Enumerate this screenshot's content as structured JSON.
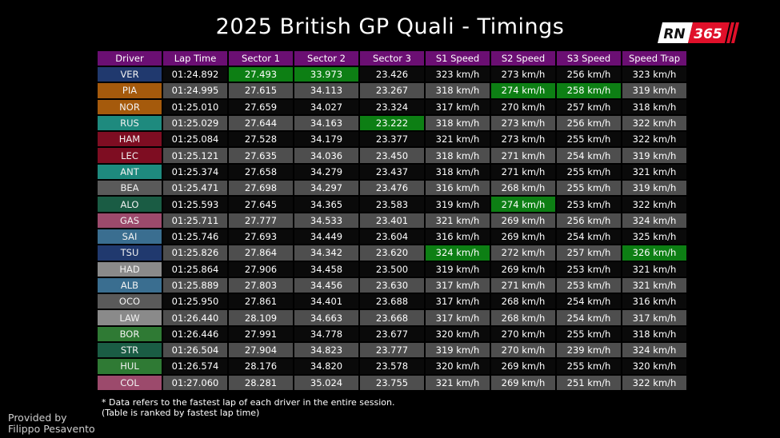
{
  "title": "2025 British GP Quali - Timings",
  "logo": {
    "left": "RN",
    "right": "365",
    "accent": "#e0102a"
  },
  "footnote": {
    "line1": "* Data refers to the fastest lap of each driver in the entire session.",
    "line2": "(Table is ranked by fastest lap time)"
  },
  "credit": {
    "line1": "Provided by",
    "line2": "Filippo Pesavento"
  },
  "colors": {
    "header": "#6b0f73",
    "best": "#0d7f14",
    "row_dark": "#0a0a0a",
    "row_light": "#4e4e4e"
  },
  "chart_data": {
    "type": "table",
    "columns": [
      "Driver",
      "Lap Time",
      "Sector 1",
      "Sector 2",
      "Sector 3",
      "S1 Speed",
      "S2 Speed",
      "S3 Speed",
      "Speed Trap"
    ],
    "rows": [
      {
        "driver": "VER",
        "color": "#20396e",
        "cells": [
          "01:24.892",
          "27.493",
          "33.973",
          "23.426",
          "323 km/h",
          "273 km/h",
          "256 km/h",
          "323 km/h"
        ],
        "best": [
          1,
          2
        ]
      },
      {
        "driver": "PIA",
        "color": "#a55a0c",
        "cells": [
          "01:24.995",
          "27.615",
          "34.113",
          "23.267",
          "318 km/h",
          "274 km/h",
          "258 km/h",
          "319 km/h"
        ],
        "best": [
          5,
          6
        ]
      },
      {
        "driver": "NOR",
        "color": "#a55a0c",
        "cells": [
          "01:25.010",
          "27.659",
          "34.027",
          "23.324",
          "317 km/h",
          "270 km/h",
          "257 km/h",
          "318 km/h"
        ],
        "best": []
      },
      {
        "driver": "RUS",
        "color": "#1e8a7e",
        "cells": [
          "01:25.029",
          "27.644",
          "34.163",
          "23.222",
          "318 km/h",
          "273 km/h",
          "256 km/h",
          "322 km/h"
        ],
        "best": [
          3
        ]
      },
      {
        "driver": "HAM",
        "color": "#7e0d22",
        "cells": [
          "01:25.084",
          "27.528",
          "34.179",
          "23.377",
          "321 km/h",
          "273 km/h",
          "255 km/h",
          "322 km/h"
        ],
        "best": []
      },
      {
        "driver": "LEC",
        "color": "#7e0d22",
        "cells": [
          "01:25.121",
          "27.635",
          "34.036",
          "23.450",
          "318 km/h",
          "271 km/h",
          "254 km/h",
          "319 km/h"
        ],
        "best": []
      },
      {
        "driver": "ANT",
        "color": "#1e8a7e",
        "cells": [
          "01:25.374",
          "27.658",
          "34.279",
          "23.437",
          "318 km/h",
          "271 km/h",
          "255 km/h",
          "321 km/h"
        ],
        "best": []
      },
      {
        "driver": "BEA",
        "color": "#5a5a5a",
        "cells": [
          "01:25.471",
          "27.698",
          "34.297",
          "23.476",
          "316 km/h",
          "268 km/h",
          "255 km/h",
          "319 km/h"
        ],
        "best": []
      },
      {
        "driver": "ALO",
        "color": "#1a5c44",
        "cells": [
          "01:25.593",
          "27.645",
          "34.365",
          "23.583",
          "319 km/h",
          "274 km/h",
          "253 km/h",
          "322 km/h"
        ],
        "best": [
          5
        ]
      },
      {
        "driver": "GAS",
        "color": "#9c4a6c",
        "cells": [
          "01:25.711",
          "27.777",
          "34.533",
          "23.401",
          "321 km/h",
          "269 km/h",
          "256 km/h",
          "324 km/h"
        ],
        "best": []
      },
      {
        "driver": "SAI",
        "color": "#3a6e90",
        "cells": [
          "01:25.746",
          "27.693",
          "34.449",
          "23.604",
          "316 km/h",
          "269 km/h",
          "254 km/h",
          "325 km/h"
        ],
        "best": []
      },
      {
        "driver": "TSU",
        "color": "#20396e",
        "cells": [
          "01:25.826",
          "27.864",
          "34.342",
          "23.620",
          "324 km/h",
          "272 km/h",
          "257 km/h",
          "326 km/h"
        ],
        "best": [
          4,
          7
        ]
      },
      {
        "driver": "HAD",
        "color": "#8a8a8a",
        "cells": [
          "01:25.864",
          "27.906",
          "34.458",
          "23.500",
          "319 km/h",
          "269 km/h",
          "253 km/h",
          "321 km/h"
        ],
        "best": []
      },
      {
        "driver": "ALB",
        "color": "#3a6e90",
        "cells": [
          "01:25.889",
          "27.803",
          "34.456",
          "23.630",
          "317 km/h",
          "271 km/h",
          "253 km/h",
          "321 km/h"
        ],
        "best": []
      },
      {
        "driver": "OCO",
        "color": "#5a5a5a",
        "cells": [
          "01:25.950",
          "27.861",
          "34.401",
          "23.688",
          "317 km/h",
          "268 km/h",
          "254 km/h",
          "316 km/h"
        ],
        "best": []
      },
      {
        "driver": "LAW",
        "color": "#8a8a8a",
        "cells": [
          "01:26.440",
          "28.109",
          "34.663",
          "23.668",
          "317 km/h",
          "268 km/h",
          "254 km/h",
          "317 km/h"
        ],
        "best": []
      },
      {
        "driver": "BOR",
        "color": "#2f7a34",
        "cells": [
          "01:26.446",
          "27.991",
          "34.778",
          "23.677",
          "320 km/h",
          "270 km/h",
          "255 km/h",
          "318 km/h"
        ],
        "best": []
      },
      {
        "driver": "STR",
        "color": "#1a5c44",
        "cells": [
          "01:26.504",
          "27.904",
          "34.823",
          "23.777",
          "319 km/h",
          "270 km/h",
          "239 km/h",
          "324 km/h"
        ],
        "best": []
      },
      {
        "driver": "HUL",
        "color": "#2f7a34",
        "cells": [
          "01:26.574",
          "28.176",
          "34.820",
          "23.578",
          "320 km/h",
          "269 km/h",
          "255 km/h",
          "320 km/h"
        ],
        "best": []
      },
      {
        "driver": "COL",
        "color": "#9c4a6c",
        "cells": [
          "01:27.060",
          "28.281",
          "35.024",
          "23.755",
          "321 km/h",
          "269 km/h",
          "251 km/h",
          "322 km/h"
        ],
        "best": []
      }
    ]
  }
}
